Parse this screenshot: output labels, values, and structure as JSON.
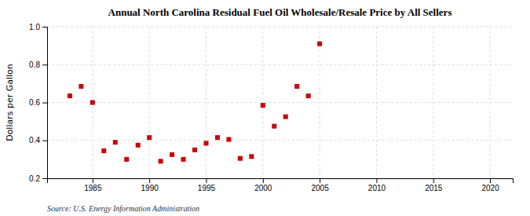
{
  "chart_data": {
    "type": "scatter",
    "title": "Annual North Carolina Residual Fuel Oil Wholesale/Resale Price by All Sellers",
    "ylabel": "Dollars per Gallon",
    "annotation": "Source: U.S. Energy Information Administration",
    "x": [
      1983,
      1984,
      1985,
      1986,
      1987,
      1988,
      1989,
      1990,
      1991,
      1992,
      1993,
      1994,
      1995,
      1996,
      1997,
      1998,
      1999,
      2000,
      2001,
      2002,
      2003,
      2004,
      2005
    ],
    "values": [
      0.635,
      0.685,
      0.6,
      0.345,
      0.39,
      0.3,
      0.375,
      0.415,
      0.29,
      0.325,
      0.3,
      0.35,
      0.385,
      0.415,
      0.405,
      0.305,
      0.315,
      0.585,
      0.475,
      0.525,
      0.685,
      0.635,
      0.91
    ],
    "color": "#cc0000",
    "marker": "square",
    "xlim": [
      1981,
      2022
    ],
    "ylim": [
      0.2,
      1.0
    ],
    "xticks": [
      1985,
      1990,
      1995,
      2000,
      2005,
      2010,
      2015,
      2020
    ],
    "yticks": [
      0.2,
      0.4,
      0.6,
      0.8,
      {
        "value": 1.0,
        "label": "1.0"
      }
    ],
    "grid": true
  }
}
